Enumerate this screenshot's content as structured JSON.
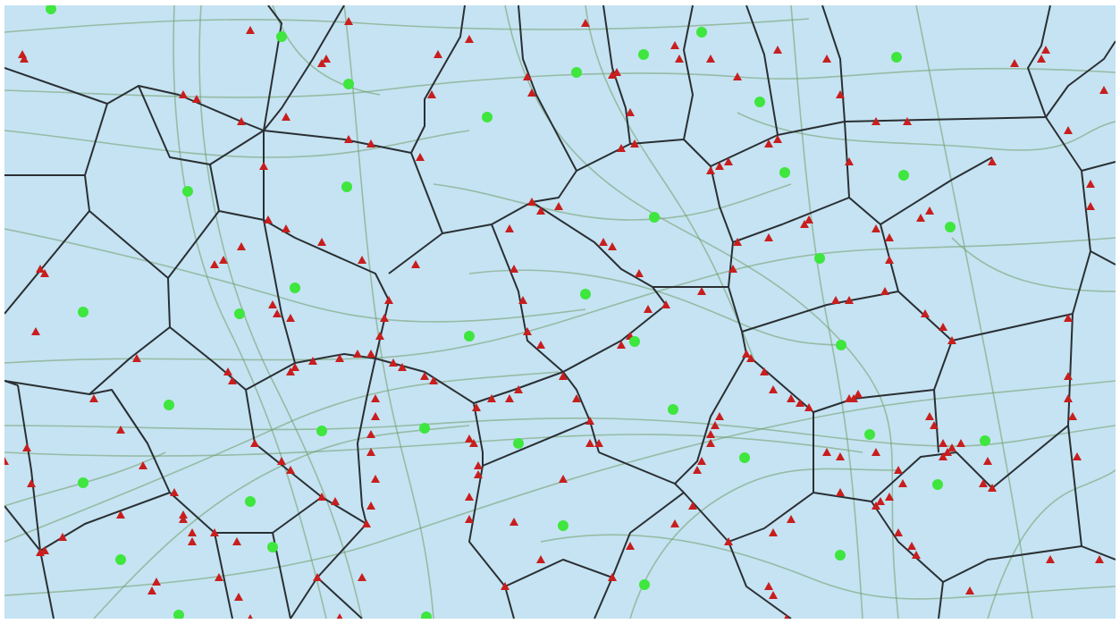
{
  "map": {
    "background_color": "#c5e3f2",
    "frame_color": "#ffffff",
    "cell_border_color": "#2a2f33",
    "road_color": "#6f9a66",
    "seed_point_color": "#3ee63e",
    "intersection_marker_color": "#c81e1e",
    "marker_shape": "triangle",
    "seed_shape": "circle"
  }
}
